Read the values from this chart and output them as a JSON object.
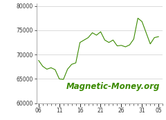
{
  "x": [
    1,
    2,
    3,
    4,
    5,
    6,
    7,
    8,
    9,
    10,
    11,
    12,
    13,
    14,
    15,
    16,
    17,
    18,
    19,
    20,
    21,
    22,
    23,
    24,
    25,
    26,
    27,
    28,
    29,
    30
  ],
  "y": [
    68800,
    67600,
    67000,
    67300,
    66900,
    65000,
    64900,
    67000,
    68000,
    68300,
    72500,
    73000,
    73500,
    74500,
    74000,
    74700,
    73000,
    72500,
    73000,
    71800,
    71900,
    71600,
    72000,
    73200,
    77500,
    76800,
    74500,
    72200,
    73500,
    73700
  ],
  "x_ticks": [
    1,
    6,
    11,
    16,
    21,
    26,
    30
  ],
  "x_tick_labels": [
    "06",
    "11",
    "16",
    "21",
    "26",
    "31",
    "05"
  ],
  "y_ticks": [
    60000,
    65000,
    70000,
    75000,
    80000
  ],
  "ylim": [
    60000,
    80500
  ],
  "xlim": [
    0.5,
    31
  ],
  "line_color": "#3a8a00",
  "background_color": "#ffffff",
  "grid_color": "#cccccc",
  "watermark": "Magnetic-Money.org",
  "watermark_color": "#3a8a00",
  "watermark_fontsize": 8.5
}
